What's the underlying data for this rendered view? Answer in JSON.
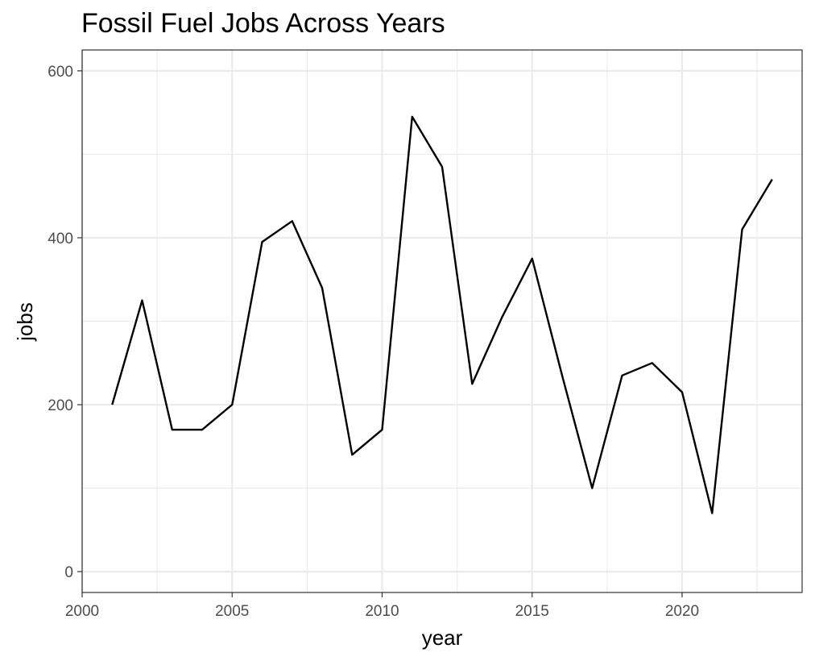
{
  "chart_data": {
    "type": "line",
    "title": "Fossil Fuel Jobs Across Years",
    "xlabel": "year",
    "ylabel": "jobs",
    "xlim": [
      2000,
      2024
    ],
    "ylim": [
      -25,
      625
    ],
    "x_ticks": [
      2000,
      2005,
      2010,
      2015,
      2020
    ],
    "x_tick_labels": [
      "2000",
      "2005",
      "2010",
      "2015",
      "2020"
    ],
    "x_minor_ticks": [
      2002.5,
      2007.5,
      2012.5,
      2017.5,
      2022.5
    ],
    "y_ticks": [
      0,
      200,
      400,
      600
    ],
    "y_tick_labels": [
      "0",
      "200",
      "400",
      "600"
    ],
    "y_minor_ticks": [
      100,
      300,
      500
    ],
    "grid": true,
    "series": [
      {
        "color": "#000000",
        "x": [
          2001,
          2002,
          2003,
          2004,
          2005,
          2006,
          2007,
          2008,
          2009,
          2010,
          2011,
          2012,
          2013,
          2014,
          2015,
          2016,
          2017,
          2018,
          2019,
          2020,
          2021,
          2022,
          2023
        ],
        "y": [
          200,
          325,
          170,
          170,
          200,
          395,
          420,
          340,
          140,
          170,
          545,
          485,
          225,
          305,
          375,
          235,
          100,
          235,
          250,
          215,
          70,
          410,
          470
        ]
      }
    ]
  }
}
